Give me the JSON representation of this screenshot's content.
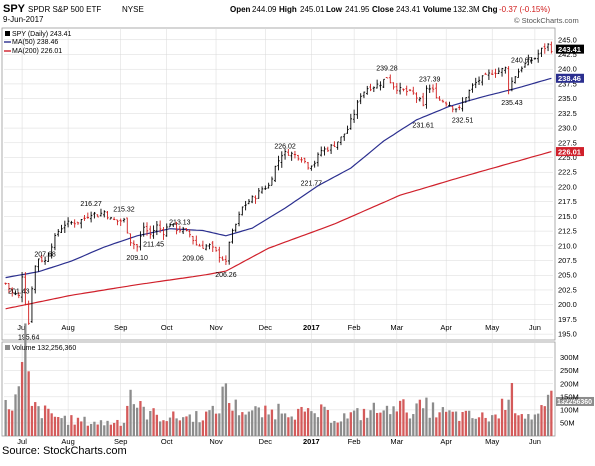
{
  "header": {
    "symbol": "SPY",
    "name": "SPDR S&P 500 ETF",
    "exchange": "NYSE",
    "date": "9-Jun-2017",
    "watermark": "© StockCharts.com",
    "open_label": "Open",
    "open": "244.09",
    "high_label": "High",
    "high": "245.01",
    "low_label": "Low",
    "low": "241.95",
    "close_label": "Close",
    "close": "243.41",
    "volume_label": "Volume",
    "volume": "132.3M",
    "chg_label": "Chg",
    "chg": "-0.37 (-0.15%)"
  },
  "legend": {
    "price": "SPY (Daily) 243.41",
    "ma50": "MA(50) 238.46",
    "ma200": "MA(200) 226.01",
    "volume": "Volume 132,256,360"
  },
  "source": "Source: StockCharts.com",
  "colors": {
    "up": "#000000",
    "down": "#d01c1c",
    "ma50": "#2b2f8f",
    "ma200": "#d0202b",
    "vol_up": "#8c8c8c",
    "vol_down": "#d45a5a",
    "grid": "#d9d9d9",
    "price_box": "#000000",
    "ma50_box": "#2b2f8f",
    "ma200_box": "#d0202b"
  },
  "chart_data": [
    {
      "type": "candlestick",
      "title": "SPY SPDR S&P 500 ETF NYSE",
      "ylim": [
        194,
        247
      ],
      "y_ticks": [
        "245.0",
        "242.5",
        "240.0",
        "237.5",
        "235.0",
        "232.5",
        "230.0",
        "227.5",
        "225.0",
        "222.5",
        "220.0",
        "217.5",
        "215.0",
        "212.5",
        "210.0",
        "207.5",
        "205.0",
        "202.5",
        "200.0",
        "197.5",
        "195.0"
      ],
      "x_ticks": [
        {
          "label": "Jul",
          "bold": false
        },
        {
          "label": "Aug",
          "bold": false
        },
        {
          "label": "Sep",
          "bold": false
        },
        {
          "label": "Oct",
          "bold": false
        },
        {
          "label": "Nov",
          "bold": false
        },
        {
          "label": "Dec",
          "bold": false
        },
        {
          "label": "2017",
          "bold": true
        },
        {
          "label": "Feb",
          "bold": false
        },
        {
          "label": "Mar",
          "bold": false
        },
        {
          "label": "Apr",
          "bold": false
        },
        {
          "label": "May",
          "bold": false
        },
        {
          "label": "Jun",
          "bold": false
        }
      ],
      "annotations": [
        {
          "text": "201.43",
          "x": 4,
          "value": 201.43
        },
        {
          "text": "195.64",
          "x": 7,
          "value": 195.64
        },
        {
          "text": "207.68",
          "x": 12,
          "value": 207.68
        },
        {
          "text": "216.27",
          "x": 26,
          "value": 216.27
        },
        {
          "text": "215.32",
          "x": 36,
          "value": 215.32
        },
        {
          "text": "209.10",
          "x": 40,
          "value": 209.1
        },
        {
          "text": "211.45",
          "x": 45,
          "value": 211.45
        },
        {
          "text": "213.13",
          "x": 53,
          "value": 213.13
        },
        {
          "text": "209.06",
          "x": 57,
          "value": 209.06
        },
        {
          "text": "206.26",
          "x": 67,
          "value": 206.26
        },
        {
          "text": "226.02",
          "x": 85,
          "value": 226.02
        },
        {
          "text": "221.77",
          "x": 93,
          "value": 221.77
        },
        {
          "text": "239.28",
          "x": 116,
          "value": 239.28
        },
        {
          "text": "231.61",
          "x": 127,
          "value": 231.61
        },
        {
          "text": "237.39",
          "x": 129,
          "value": 237.39
        },
        {
          "text": "232.51",
          "x": 139,
          "value": 232.51
        },
        {
          "text": "235.43",
          "x": 154,
          "value": 235.43
        },
        {
          "text": "240.67",
          "x": 157,
          "value": 240.67
        }
      ],
      "ohlc_anchors": [
        [
          0,
          203.6
        ],
        [
          2,
          202.0
        ],
        [
          4,
          201.4
        ],
        [
          5,
          205.0
        ],
        [
          6,
          200.4
        ],
        [
          7,
          196.9
        ],
        [
          8,
          203.0
        ],
        [
          9,
          206.5
        ],
        [
          10,
          207.9
        ],
        [
          12,
          207.4
        ],
        [
          14,
          210.2
        ],
        [
          16,
          212.5
        ],
        [
          18,
          213.7
        ],
        [
          20,
          213.9
        ],
        [
          22,
          214.1
        ],
        [
          24,
          214.7
        ],
        [
          26,
          215.6
        ],
        [
          28,
          215.2
        ],
        [
          30,
          215.8
        ],
        [
          32,
          214.5
        ],
        [
          34,
          214.2
        ],
        [
          36,
          214.3
        ],
        [
          38,
          210.8
        ],
        [
          40,
          209.8
        ],
        [
          42,
          213.2
        ],
        [
          44,
          211.9
        ],
        [
          46,
          213.4
        ],
        [
          48,
          212.3
        ],
        [
          50,
          213.8
        ],
        [
          52,
          212.9
        ],
        [
          54,
          212.6
        ],
        [
          56,
          211.9
        ],
        [
          58,
          210.2
        ],
        [
          60,
          209.9
        ],
        [
          62,
          210.0
        ],
        [
          64,
          208.9
        ],
        [
          66,
          207.8
        ],
        [
          67,
          207.0
        ],
        [
          68,
          210.8
        ],
        [
          70,
          213.6
        ],
        [
          72,
          216.5
        ],
        [
          74,
          217.6
        ],
        [
          76,
          218.4
        ],
        [
          78,
          219.7
        ],
        [
          80,
          220.2
        ],
        [
          82,
          223.4
        ],
        [
          84,
          225.6
        ],
        [
          86,
          225.8
        ],
        [
          88,
          225.4
        ],
        [
          90,
          225.0
        ],
        [
          92,
          223.6
        ],
        [
          94,
          224.2
        ],
        [
          96,
          226.2
        ],
        [
          98,
          226.5
        ],
        [
          100,
          227.2
        ],
        [
          102,
          228.3
        ],
        [
          104,
          229.8
        ],
        [
          106,
          232.5
        ],
        [
          108,
          235.7
        ],
        [
          110,
          236.8
        ],
        [
          112,
          237.1
        ],
        [
          114,
          237.6
        ],
        [
          116,
          238.7
        ],
        [
          118,
          237.2
        ],
        [
          120,
          236.5
        ],
        [
          122,
          236.2
        ],
        [
          124,
          235.8
        ],
        [
          126,
          234.6
        ],
        [
          127,
          233.6
        ],
        [
          128,
          236.9
        ],
        [
          130,
          236.3
        ],
        [
          132,
          234.8
        ],
        [
          134,
          234.4
        ],
        [
          136,
          233.6
        ],
        [
          138,
          233.2
        ],
        [
          140,
          235.4
        ],
        [
          142,
          237.1
        ],
        [
          144,
          238.2
        ],
        [
          146,
          238.7
        ],
        [
          148,
          239.5
        ],
        [
          150,
          239.7
        ],
        [
          152,
          240.1
        ],
        [
          153,
          236.9
        ],
        [
          155,
          238.9
        ],
        [
          157,
          240.4
        ],
        [
          159,
          241.3
        ],
        [
          161,
          241.9
        ],
        [
          163,
          243.3
        ],
        [
          165,
          244.1
        ],
        [
          166,
          243.41
        ]
      ],
      "ma50_anchors": [
        [
          0,
          204.6
        ],
        [
          10,
          205.6
        ],
        [
          20,
          207.4
        ],
        [
          30,
          209.8
        ],
        [
          40,
          211.7
        ],
        [
          50,
          212.9
        ],
        [
          60,
          212.6
        ],
        [
          67,
          211.7
        ],
        [
          75,
          213.0
        ],
        [
          85,
          216.4
        ],
        [
          95,
          220.2
        ],
        [
          105,
          223.2
        ],
        [
          115,
          227.8
        ],
        [
          125,
          231.4
        ],
        [
          135,
          233.7
        ],
        [
          145,
          235.3
        ],
        [
          155,
          236.7
        ],
        [
          166,
          238.46
        ]
      ],
      "ma200_anchors": [
        [
          0,
          199.3
        ],
        [
          20,
          201.6
        ],
        [
          40,
          203.4
        ],
        [
          60,
          205.0
        ],
        [
          67,
          205.7
        ],
        [
          80,
          209.6
        ],
        [
          100,
          213.7
        ],
        [
          120,
          218.6
        ],
        [
          140,
          221.9
        ],
        [
          166,
          226.01
        ]
      ]
    },
    {
      "type": "bar",
      "title": "Volume",
      "ylim": [
        0,
        360
      ],
      "y_ticks": [
        "300M",
        "250M",
        "200M",
        "150M",
        "100M",
        "50M"
      ],
      "last_value_label": "132256360",
      "volume_anchors_millions": [
        [
          0,
          110
        ],
        [
          2,
          130
        ],
        [
          4,
          160
        ],
        [
          5,
          250
        ],
        [
          6,
          345
        ],
        [
          7,
          205
        ],
        [
          8,
          110
        ],
        [
          10,
          100
        ],
        [
          14,
          80
        ],
        [
          20,
          60
        ],
        [
          30,
          50
        ],
        [
          36,
          60
        ],
        [
          38,
          180
        ],
        [
          40,
          110
        ],
        [
          44,
          85
        ],
        [
          50,
          70
        ],
        [
          56,
          75
        ],
        [
          60,
          80
        ],
        [
          64,
          90
        ],
        [
          66,
          150
        ],
        [
          67,
          220
        ],
        [
          68,
          130
        ],
        [
          70,
          110
        ],
        [
          74,
          95
        ],
        [
          80,
          85
        ],
        [
          84,
          110
        ],
        [
          88,
          95
        ],
        [
          92,
          80
        ],
        [
          96,
          90
        ],
        [
          100,
          70
        ],
        [
          104,
          75
        ],
        [
          108,
          85
        ],
        [
          112,
          100
        ],
        [
          116,
          90
        ],
        [
          118,
          150
        ],
        [
          120,
          110
        ],
        [
          124,
          100
        ],
        [
          128,
          110
        ],
        [
          132,
          90
        ],
        [
          136,
          80
        ],
        [
          140,
          75
        ],
        [
          146,
          70
        ],
        [
          150,
          80
        ],
        [
          153,
          185
        ],
        [
          155,
          120
        ],
        [
          158,
          85
        ],
        [
          162,
          75
        ],
        [
          166,
          132
        ]
      ]
    }
  ]
}
